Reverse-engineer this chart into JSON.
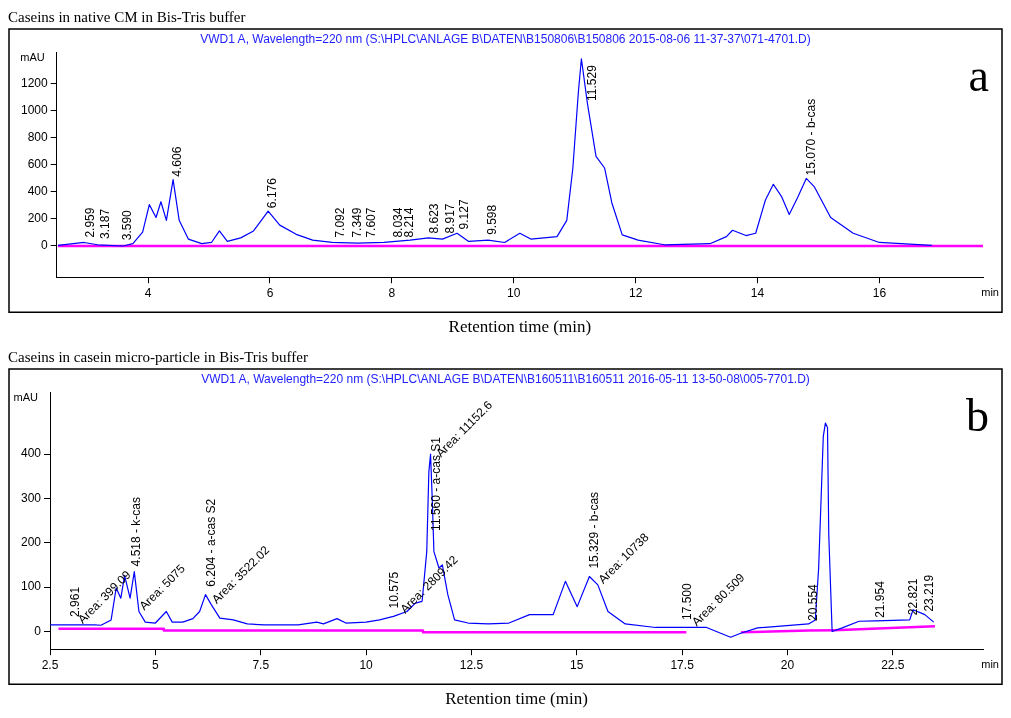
{
  "chart_data": [
    {
      "type": "line",
      "title": "Caseins in native CM in Bis-Tris buffer",
      "subtitle": "VWD1 A, Wavelength=220 nm (S:\\HPLC\\ANLAGE B\\DATEN\\B150806\\B150806 2015-08-06 11-37-37\\071-4701.D)",
      "xlabel": "Retention time (min)",
      "ylabel": "mAU",
      "xlim": [
        2.5,
        17.7
      ],
      "xticks": [
        4,
        6,
        8,
        10,
        12,
        14,
        16
      ],
      "ylim": [
        -230,
        1430
      ],
      "yticks": [
        0,
        200,
        400,
        600,
        800,
        1000,
        1200
      ],
      "grid": false,
      "legend": false,
      "marker": "none",
      "series": [
        {
          "color": "#0000ff",
          "x": [
            2.52,
            2.95,
            3.17,
            3.59,
            3.75,
            3.91,
            4.02,
            4.13,
            4.21,
            4.3,
            4.41,
            4.51,
            4.66,
            4.88,
            5.04,
            5.17,
            5.3,
            5.52,
            5.73,
            5.97,
            6.16,
            6.43,
            6.7,
            7.02,
            7.44,
            7.87,
            8.3,
            8.6,
            8.83,
            9.07,
            9.26,
            9.58,
            9.85,
            10.1,
            10.28,
            10.71,
            10.87,
            10.97,
            11.06,
            11.11,
            11.21,
            11.35,
            11.49,
            11.61,
            11.78,
            12.04,
            12.47,
            13.22,
            13.49,
            13.59,
            13.81,
            13.97,
            14.13,
            14.26,
            14.4,
            14.52,
            14.66,
            14.8,
            14.93,
            15.2,
            15.57,
            16,
            16.86
          ],
          "values": [
            4,
            26,
            9,
            0,
            17,
            103,
            305,
            210,
            326,
            189,
            489,
            189,
            51,
            17,
            26,
            111,
            34,
            60,
            111,
            257,
            154,
            86,
            43,
            26,
            21,
            26,
            43,
            60,
            51,
            94,
            34,
            43,
            26,
            94,
            51,
            69,
            189,
            575,
            1133,
            1380,
            1047,
            661,
            575,
            317,
            82,
            43,
            9,
            17,
            69,
            116,
            77,
            94,
            339,
            455,
            360,
            232,
            360,
            498,
            438,
            210,
            94,
            26,
            4
          ]
        },
        {
          "color": "#ff00ff",
          "x": [
            2.52,
            17.7
          ],
          "values": [
            0,
            0
          ]
        }
      ],
      "annotations": [
        "a",
        "min",
        {
          "text": "2.959",
          "x": 2.97,
          "y": 40
        },
        {
          "text": "3.187",
          "x": 3.22,
          "y": 30
        },
        {
          "text": "3.590",
          "x": 3.59,
          "y": 20
        },
        {
          "text": "4.606",
          "x": 4.41,
          "y": 489
        },
        {
          "text": "6.176",
          "x": 5.97,
          "y": 257
        },
        {
          "text": "7.092",
          "x": 7.08,
          "y": 40
        },
        {
          "text": "7.349",
          "x": 7.36,
          "y": 40
        },
        {
          "text": "7.607",
          "x": 7.58,
          "y": 40
        },
        {
          "text": "8.034",
          "x": 8.03,
          "y": 40
        },
        {
          "text": "8.214",
          "x": 8.21,
          "y": 40
        },
        {
          "text": "8.623",
          "x": 8.62,
          "y": 70
        },
        {
          "text": "8.917",
          "x": 8.89,
          "y": 70
        },
        {
          "text": "9.127",
          "x": 9.11,
          "y": 100
        },
        {
          "text": "9.598",
          "x": 9.58,
          "y": 60
        },
        {
          "text": "11.529",
          "x": 11.21,
          "y": 1047
        },
        {
          "text": "15.070 - b-cas",
          "x": 14.8,
          "y": 498
        }
      ]
    },
    {
      "type": "line",
      "title": "Caseins in casein micro-particle in Bis-Tris buffer",
      "subtitle": "VWD1 A, Wavelength=220 nm (S:\\HPLC\\ANLAGE B\\DATEN\\B160511\\B160511 2016-05-11 13-50-08\\005-7701.D)",
      "xlabel": "Retention time (min)",
      "ylabel": "mAU",
      "xlim": [
        2.5,
        24.64
      ],
      "xticks": [
        2.5,
        5,
        7.5,
        10,
        12.5,
        15,
        17.5,
        20,
        22.5
      ],
      "ylim": [
        -40,
        540
      ],
      "yticks": [
        0,
        100,
        200,
        300,
        400
      ],
      "grid": false,
      "legend": false,
      "marker": "none",
      "series": [
        {
          "color": "#0000ff",
          "x": [
            2.5,
            3.55,
            3.71,
            3.95,
            4.07,
            4.18,
            4.27,
            4.4,
            4.5,
            4.61,
            4.76,
            5,
            5.26,
            5.4,
            5.65,
            5.89,
            6.05,
            6.19,
            6.33,
            6.53,
            6.85,
            7.18,
            7.58,
            8.39,
            8.83,
            8.99,
            9.31,
            9.52,
            10,
            10.32,
            10.65,
            10.97,
            11.17,
            11.33,
            11.44,
            11.49,
            11.53,
            11.57,
            11.61,
            11.73,
            11.81,
            11.94,
            12.1,
            12.42,
            12.9,
            13.39,
            13.88,
            14.44,
            14.73,
            15.01,
            15.3,
            15.5,
            15.74,
            16.15,
            16.87,
            18.08,
            18.65,
            18.89,
            19.29,
            20.5,
            20.66,
            20.74,
            20.85,
            20.9,
            20.95,
            20.98,
            21.06,
            21.3,
            21.7,
            22.1,
            22.9,
            22.98,
            23.26,
            23.47
          ],
          "values": [
            15,
            15,
            14,
            26,
            98,
            75,
            126,
            75,
            135,
            45,
            21,
            19,
            45,
            21,
            21,
            29,
            45,
            83,
            60,
            30,
            26,
            17,
            15,
            15,
            21,
            17,
            29,
            19,
            21,
            26,
            34,
            45,
            64,
            68,
            180,
            360,
            400,
            300,
            180,
            143,
            150,
            83,
            26,
            19,
            17,
            19,
            38,
            38,
            113,
            56,
            124,
            105,
            45,
            17,
            9,
            9,
            -13,
            -4,
            8,
            17,
            26,
            143,
            440,
            470,
            460,
            218,
            0,
            8,
            23,
            24,
            26,
            49,
            38,
            21
          ]
        },
        {
          "color": "#ff00ff",
          "x": [
            2.7,
            5.2,
            5.2,
            11.35,
            11.35,
            17.6,
            18.2,
            18.9,
            20.5,
            21.1,
            23.5
          ],
          "values": [
            6,
            6,
            2,
            2,
            -2,
            -2,
            null,
            -2,
            2,
            3,
            12
          ]
        }
      ],
      "annotations": [
        "b",
        "min",
        {
          "text": "2.961",
          "x": 2.98,
          "y": 26
        },
        {
          "text": "Area: 399.09",
          "x": 3.15,
          "y": 15
        },
        {
          "text": "4.518 - k-cas",
          "x": 4.44,
          "y": 140
        },
        {
          "text": "Area: 5075",
          "x": 4.61,
          "y": 45
        },
        {
          "text": "6.204 - a-cas S2",
          "x": 6.21,
          "y": 94
        },
        {
          "text": "Area: 3522.02",
          "x": 6.33,
          "y": 60
        },
        {
          "text": "10.575",
          "x": 10.56,
          "y": 45
        },
        {
          "text": "Area: 2809.42",
          "x": 10.8,
          "y": 38
        },
        {
          "text": "11.560 - a-cas S1",
          "x": 11.56,
          "y": 220
        },
        {
          "text": "Area: 11152.6",
          "x": 11.65,
          "y": 390
        },
        {
          "text": "15.329 - b-cas",
          "x": 15.3,
          "y": 135
        },
        {
          "text": "Area: 10738",
          "x": 15.5,
          "y": 105
        },
        {
          "text": "17.500",
          "x": 17.52,
          "y": 19
        },
        {
          "text": "Area: 80.509",
          "x": 17.72,
          "y": 9
        },
        {
          "text": "20.554",
          "x": 20.5,
          "y": 17
        },
        {
          "text": "21.954",
          "x": 22.1,
          "y": 24
        },
        {
          "text": "22.821",
          "x": 22.88,
          "y": 30
        },
        {
          "text": "23.219",
          "x": 23.26,
          "y": 38
        }
      ]
    }
  ]
}
